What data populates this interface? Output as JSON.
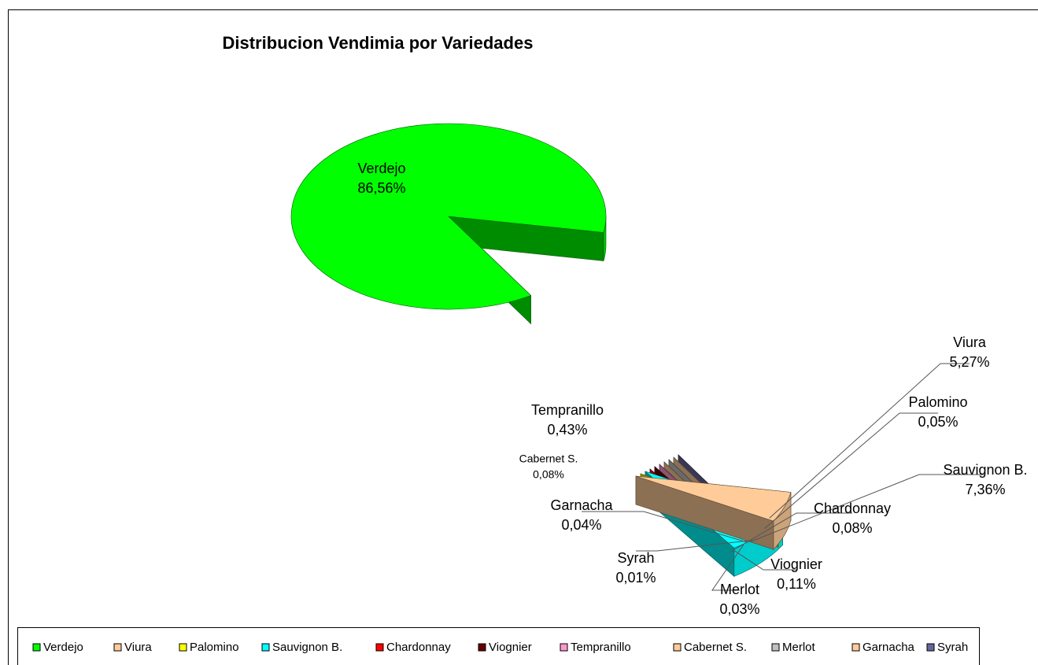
{
  "chart_data": {
    "type": "pie3d",
    "title": "Distribucion Vendimia por Variedades",
    "categories": [
      "Verdejo",
      "Viura",
      "Palomino",
      "Sauvignon B.",
      "Chardonnay",
      "Viognier",
      "Tempranillo",
      "Cabernet S.",
      "Merlot",
      "Garnacha",
      "Syrah"
    ],
    "values": [
      86.56,
      5.27,
      0.05,
      7.36,
      0.08,
      0.11,
      0.43,
      0.08,
      0.03,
      0.04,
      0.01
    ],
    "value_labels": [
      "86,56%",
      "5,27%",
      "0,05%",
      "7,36%",
      "0,08%",
      "0,11%",
      "0,43%",
      "0,08%",
      "0,03%",
      "0,04%",
      "0,01%"
    ],
    "colors": [
      "#00ff00",
      "#ffcc99",
      "#ffff00",
      "#00ffff",
      "#ff0000",
      "#660000",
      "#ff99cc",
      "#ffcc99",
      "#c0c0c0",
      "#ffcc99",
      "#666699"
    ],
    "legend": "bottom"
  }
}
